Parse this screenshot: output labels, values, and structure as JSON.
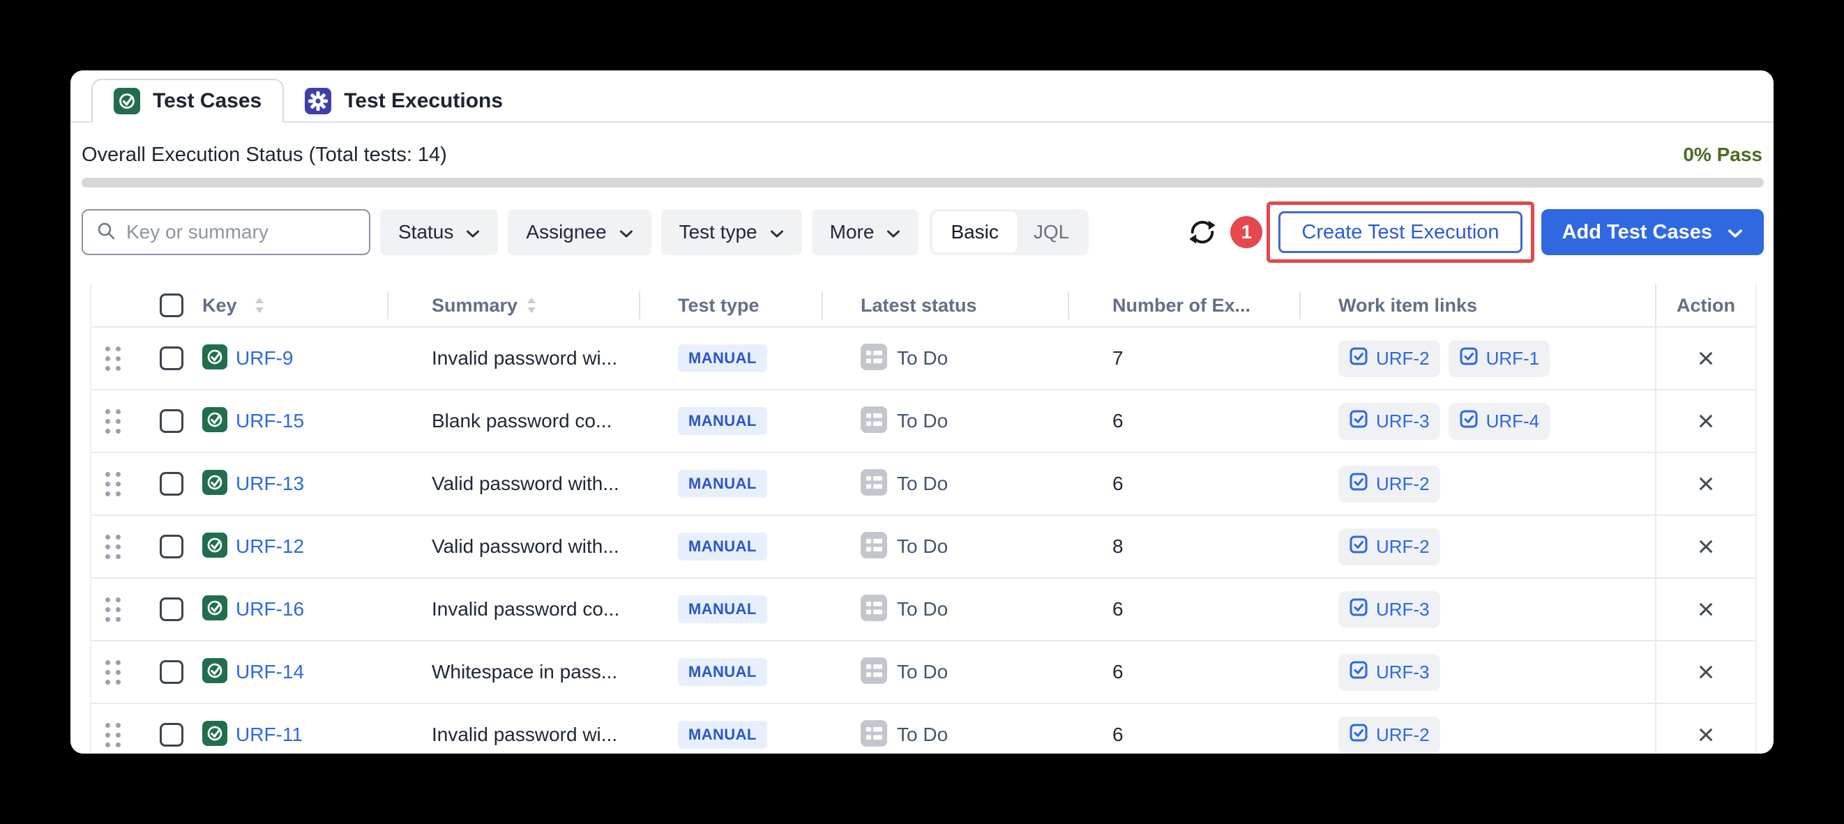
{
  "tabs": {
    "test_cases": "Test Cases",
    "test_executions": "Test Executions"
  },
  "status_bar": {
    "title": "Overall Execution Status (Total tests: 14)",
    "pass_label": "0% Pass",
    "progress_percent": 0
  },
  "filters": {
    "search_placeholder": "Key or summary",
    "status": "Status",
    "assignee": "Assignee",
    "test_type": "Test type",
    "more": "More",
    "mode_basic": "Basic",
    "mode_jql": "JQL",
    "mode_selected": "Basic"
  },
  "actions": {
    "badge_number": "1",
    "create_button": "Create Test Execution",
    "add_button": "Add Test Cases"
  },
  "table": {
    "headers": {
      "key": "Key",
      "summary": "Summary",
      "test_type": "Test type",
      "latest_status": "Latest status",
      "executions": "Number of Ex...",
      "links": "Work item links",
      "action": "Action"
    },
    "rows": [
      {
        "key": "URF-9",
        "summary": "Invalid password wi...",
        "test_type": "MANUAL",
        "status": "To Do",
        "executions": "7",
        "links": [
          "URF-2",
          "URF-1"
        ]
      },
      {
        "key": "URF-15",
        "summary": "Blank password co...",
        "test_type": "MANUAL",
        "status": "To Do",
        "executions": "6",
        "links": [
          "URF-3",
          "URF-4"
        ]
      },
      {
        "key": "URF-13",
        "summary": "Valid password with...",
        "test_type": "MANUAL",
        "status": "To Do",
        "executions": "6",
        "links": [
          "URF-2"
        ]
      },
      {
        "key": "URF-12",
        "summary": "Valid password with...",
        "test_type": "MANUAL",
        "status": "To Do",
        "executions": "8",
        "links": [
          "URF-2"
        ]
      },
      {
        "key": "URF-16",
        "summary": "Invalid password co...",
        "test_type": "MANUAL",
        "status": "To Do",
        "executions": "6",
        "links": [
          "URF-3"
        ]
      },
      {
        "key": "URF-14",
        "summary": "Whitespace in pass...",
        "test_type": "MANUAL",
        "status": "To Do",
        "executions": "6",
        "links": [
          "URF-3"
        ]
      },
      {
        "key": "URF-11",
        "summary": "Invalid password wi...",
        "test_type": "MANUAL",
        "status": "To Do",
        "executions": "6",
        "links": [
          "URF-2"
        ]
      }
    ]
  },
  "colors": {
    "accent_blue": "#2f68e1",
    "link_blue": "#2c68e2",
    "annotation_red": "#e5484d",
    "test_case_green": "#216e4e",
    "execution_indigo": "#3e3fae",
    "pass_green": "#4c6b22",
    "manual_badge_bg": "#e8effc",
    "manual_badge_text": "#2a55cc",
    "todo_icon_gray": "#c3c7cd"
  }
}
